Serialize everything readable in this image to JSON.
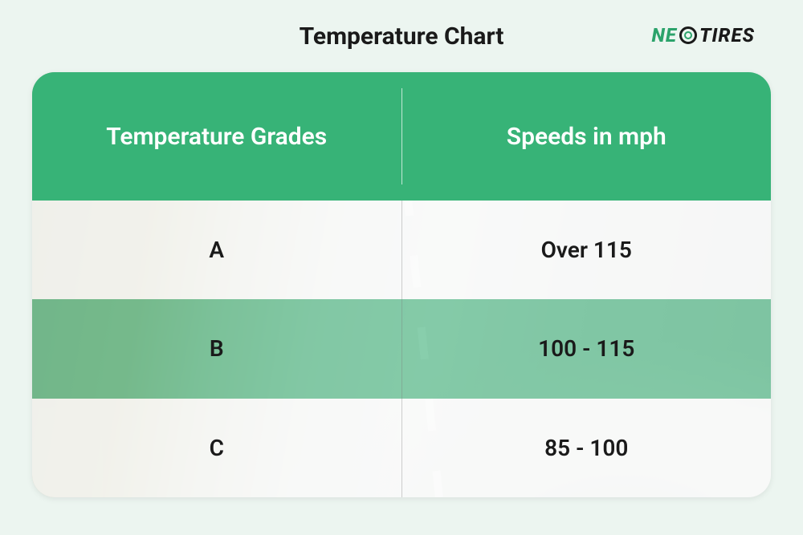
{
  "title": "Temperature Chart",
  "logo": {
    "part1": "NE",
    "part2": "TIRES",
    "icon_name": "tire-icon",
    "color_accent": "#2ba36b",
    "color_text": "#1a1a1a"
  },
  "page": {
    "background_color": "#ecf5f0",
    "title_fontsize": 30,
    "title_color": "#1a1a1a"
  },
  "table": {
    "type": "table",
    "border_radius": 28,
    "header_bg": "#37b377",
    "header_text_color": "#ffffff",
    "header_fontsize": 30,
    "body_fontsize": 28,
    "body_text_color": "#1a1a1a",
    "row_overlay_light": "rgba(255,255,255,0.78)",
    "row_overlay_green": "rgba(55,179,119,0.55)",
    "divider_color_header": "rgba(255,255,255,0.7)",
    "divider_color_body": "rgba(120,120,120,0.35)",
    "columns": [
      "Temperature Grades",
      "Speeds in mph"
    ],
    "rows": [
      {
        "grade": "A",
        "speed": "Over 115",
        "style": "light"
      },
      {
        "grade": "B",
        "speed": "100 - 115",
        "style": "green"
      },
      {
        "grade": "C",
        "speed": "85 - 100",
        "style": "light"
      }
    ],
    "background_image": {
      "description": "faded-road-curve",
      "opacity": 0.55
    }
  }
}
